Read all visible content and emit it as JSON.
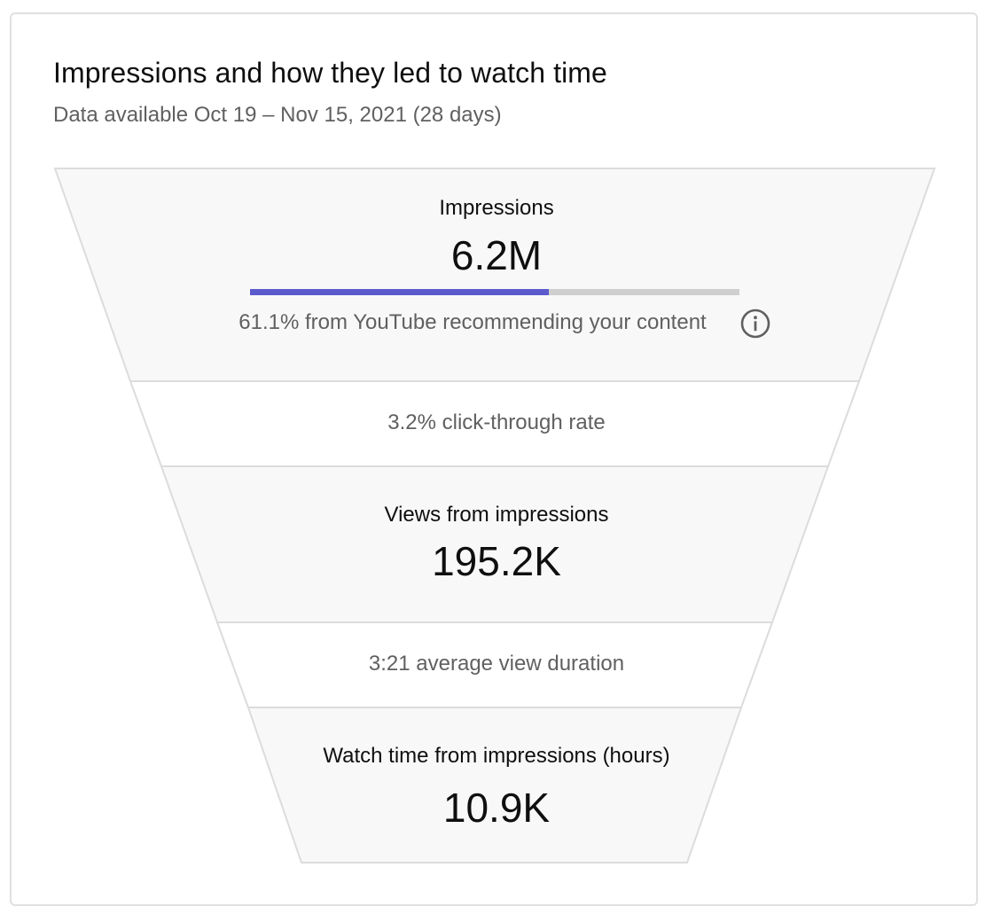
{
  "header": {
    "title": "Impressions and how they led to watch time",
    "subtitle": "Data available Oct 19 – Nov 15, 2021 (28 days)"
  },
  "chart_data": {
    "type": "funnel",
    "title": "Impressions and how they led to watch time",
    "stages": [
      {
        "label": "Impressions",
        "value": 6200000,
        "display_value": "6.2M"
      },
      {
        "label": "Views from impressions",
        "value": 195200,
        "display_value": "195.2K"
      },
      {
        "label": "Watch time from impressions (hours)",
        "value": 10900,
        "display_value": "10.9K"
      }
    ],
    "transitions": [
      {
        "text": "3.2% click-through rate",
        "value_percent": 3.2
      },
      {
        "text": "3:21 average view duration",
        "value": "3:21"
      }
    ],
    "recommendation_share": {
      "percent": 61.1,
      "text": "61.1% from YouTube recommending your content"
    }
  },
  "icons": {
    "info": "info-icon"
  },
  "colors": {
    "accent": "#5a5acd",
    "track": "#cfcfcf",
    "band_fill": "#f8f8f8",
    "band_stroke": "#dcdcdc",
    "secondary_text": "#606060"
  }
}
